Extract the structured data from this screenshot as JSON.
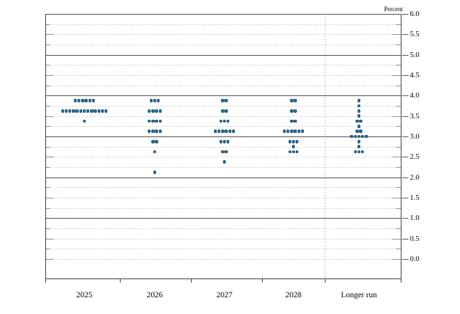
{
  "chart_data": {
    "type": "scatter",
    "subtype": "fomc-dot-plot",
    "title": "",
    "unit_label": "Percent",
    "xlabel": "",
    "ylabel": "Percent",
    "y_axis": {
      "min": 0.0,
      "max": 6.0,
      "grid_step": 0.25,
      "label_step": 0.5,
      "tick_labels": [
        "6.0",
        "5.5",
        "5.0",
        "4.5",
        "4.0",
        "3.5",
        "3.0",
        "2.5",
        "2.0",
        "1.5",
        "1.0",
        "0.5",
        "0.0"
      ]
    },
    "categories": [
      "2025",
      "2026",
      "2027",
      "2028",
      "Longer run"
    ],
    "series": [
      {
        "category": "2025",
        "dots": [
          {
            "value": 3.875,
            "count": 6
          },
          {
            "value": 3.625,
            "count": 13
          },
          {
            "value": 3.375,
            "count": 1
          }
        ]
      },
      {
        "category": "2026",
        "dots": [
          {
            "value": 3.875,
            "count": 3
          },
          {
            "value": 3.625,
            "count": 4
          },
          {
            "value": 3.375,
            "count": 4
          },
          {
            "value": 3.125,
            "count": 4
          },
          {
            "value": 2.875,
            "count": 2
          },
          {
            "value": 2.625,
            "count": 1
          },
          {
            "value": 2.125,
            "count": 1
          }
        ]
      },
      {
        "category": "2027",
        "dots": [
          {
            "value": 3.875,
            "count": 2
          },
          {
            "value": 3.625,
            "count": 2
          },
          {
            "value": 3.375,
            "count": 3
          },
          {
            "value": 3.125,
            "count": 6
          },
          {
            "value": 2.875,
            "count": 3
          },
          {
            "value": 2.625,
            "count": 2
          },
          {
            "value": 2.375,
            "count": 1
          }
        ]
      },
      {
        "category": "2028",
        "dots": [
          {
            "value": 3.875,
            "count": 2
          },
          {
            "value": 3.625,
            "count": 2
          },
          {
            "value": 3.375,
            "count": 2
          },
          {
            "value": 3.125,
            "count": 6
          },
          {
            "value": 2.875,
            "count": 3
          },
          {
            "value": 2.75,
            "count": 1
          },
          {
            "value": 2.625,
            "count": 3
          }
        ]
      },
      {
        "category": "Longer run",
        "dots": [
          {
            "value": 3.875,
            "count": 1
          },
          {
            "value": 3.75,
            "count": 1
          },
          {
            "value": 3.625,
            "count": 1
          },
          {
            "value": 3.5,
            "count": 1
          },
          {
            "value": 3.375,
            "count": 2
          },
          {
            "value": 3.25,
            "count": 1
          },
          {
            "value": 3.125,
            "count": 2
          },
          {
            "value": 3.0,
            "count": 5
          },
          {
            "value": 2.875,
            "count": 1
          },
          {
            "value": 2.75,
            "count": 1
          },
          {
            "value": 2.625,
            "count": 3
          }
        ]
      }
    ],
    "legend": [],
    "layout_hints": {
      "grid": "dotted quarter-point lines, solid integer lines",
      "separator": "dotted vertical line before Longer run column",
      "y_labels_position": "right"
    },
    "colors": {
      "dot_fill": "#2e6d90",
      "dot_edge": "#1b5478",
      "solid_grid": "#4a4a4a",
      "dotted_grid": "#b4b4b4",
      "axis": "#3a3a3a",
      "text": "#000000"
    }
  }
}
